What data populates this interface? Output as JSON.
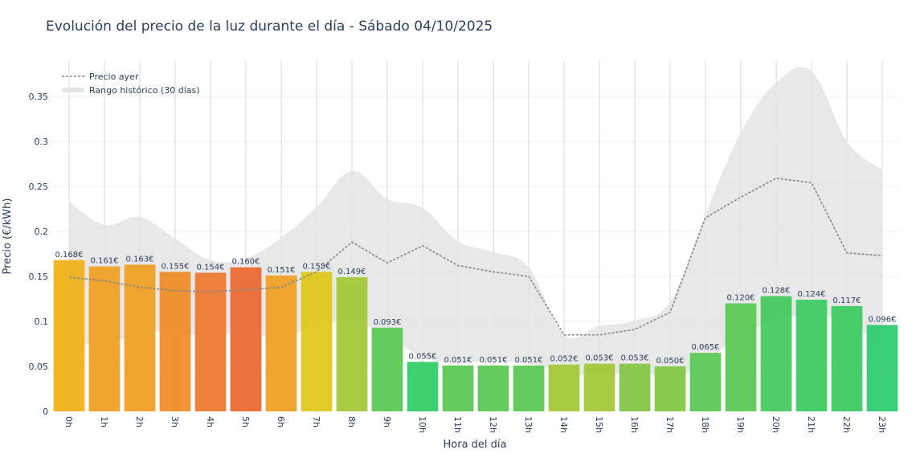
{
  "chart_data": {
    "type": "bar",
    "title": "Evolución del precio de la luz durante el día - Sábado 04/10/2025",
    "xlabel": "Hora del día",
    "ylabel": "Precio (€/kWh)",
    "ylim": [
      0,
      0.39
    ],
    "yticks": [
      0,
      0.05,
      0.1,
      0.15,
      0.2,
      0.25,
      0.3,
      0.35
    ],
    "ytick_labels": [
      "0",
      "0.05",
      "0.1",
      "0.15",
      "0.2",
      "0.25",
      "0.3",
      "0.35"
    ],
    "grid": true,
    "legend_position": "top-left",
    "categories": [
      "0h",
      "1h",
      "2h",
      "3h",
      "4h",
      "5h",
      "6h",
      "7h",
      "8h",
      "9h",
      "10h",
      "11h",
      "12h",
      "13h",
      "14h",
      "15h",
      "16h",
      "17h",
      "18h",
      "19h",
      "20h",
      "21h",
      "22h",
      "23h"
    ],
    "series": [
      {
        "type": "bar",
        "values": [
          0.168,
          0.161,
          0.163,
          0.155,
          0.154,
          0.16,
          0.151,
          0.155,
          0.149,
          0.093,
          0.055,
          0.051,
          0.051,
          0.051,
          0.052,
          0.053,
          0.053,
          0.05,
          0.065,
          0.12,
          0.128,
          0.124,
          0.117,
          0.096
        ],
        "labels": [
          "0.168€",
          "0.161€",
          "0.163€",
          "0.155€",
          "0.154€",
          "0.160€",
          "0.151€",
          "0.155€",
          "0.149€",
          "0.093€",
          "0.055€",
          "0.051€",
          "0.051€",
          "0.051€",
          "0.052€",
          "0.053€",
          "0.053€",
          "0.050€",
          "0.065€",
          "0.120€",
          "0.128€",
          "0.124€",
          "0.117€",
          "0.096€"
        ],
        "colors": [
          "#f0b21a",
          "#eea024",
          "#eea024",
          "#ed8e2a",
          "#ec7a30",
          "#ea6a33",
          "#eea024",
          "#e0c81e",
          "#a2c93a",
          "#5cc956",
          "#34cc67",
          "#5cc956",
          "#5cc956",
          "#5cc956",
          "#a2c93a",
          "#a2c93a",
          "#84c748",
          "#84c748",
          "#5cc956",
          "#5cc956",
          "#48ca5f",
          "#3ecb62",
          "#3ecb62",
          "#2ecc71"
        ]
      },
      {
        "name": "Precio ayer",
        "type": "line",
        "color": "#888888",
        "values": [
          0.149,
          0.145,
          0.138,
          0.134,
          0.133,
          0.135,
          0.138,
          0.155,
          0.188,
          0.165,
          0.184,
          0.162,
          0.155,
          0.15,
          0.085,
          0.085,
          0.091,
          0.11,
          0.215,
          0.238,
          0.259,
          0.254,
          0.176,
          0.173
        ]
      },
      {
        "name": "Rango histórico (30 días)",
        "type": "area",
        "color": "#e4e4e4",
        "upper": [
          0.233,
          0.207,
          0.216,
          0.192,
          0.168,
          0.17,
          0.193,
          0.227,
          0.267,
          0.236,
          0.226,
          0.189,
          0.177,
          0.16,
          0.085,
          0.095,
          0.101,
          0.122,
          0.219,
          0.31,
          0.365,
          0.378,
          0.3,
          0.268
        ],
        "lower": [
          0.08,
          0.073,
          0.088,
          0.087,
          0.085,
          0.087,
          0.082,
          0.095,
          0.099,
          0.084,
          0.06,
          0.055,
          0.056,
          0.053,
          0.045,
          0.038,
          0.046,
          0.036,
          0.055,
          0.086,
          0.1,
          0.108,
          0.098,
          0.075
        ]
      }
    ]
  }
}
